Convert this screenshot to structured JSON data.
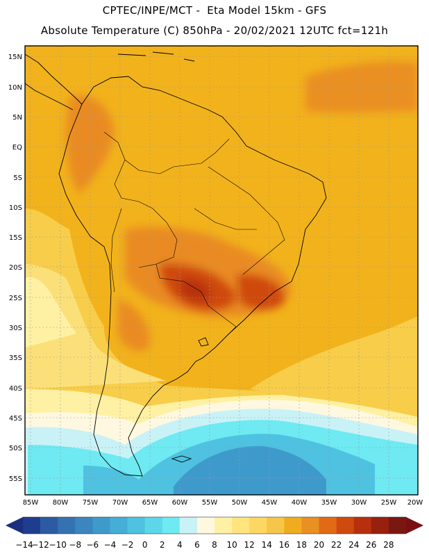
{
  "header": {
    "line1": "CPTEC/INPE/MCT -  Eta Model 15km - GFS",
    "line2": "Absolute Temperature (C) 850hPa - 20/02/2021 12UTC fct=121h"
  },
  "map": {
    "lat_labels": [
      "15N",
      "10N",
      "5N",
      "EQ",
      "5S",
      "10S",
      "15S",
      "20S",
      "25S",
      "30S",
      "35S",
      "40S",
      "45S",
      "50S",
      "55S"
    ],
    "lon_labels": [
      "85W",
      "80W",
      "75W",
      "70W",
      "65W",
      "60W",
      "55W",
      "50W",
      "45W",
      "40W",
      "35W",
      "30W",
      "25W",
      "20W"
    ],
    "colors": {
      "frame": "#000000",
      "grid": "#9a9a9a",
      "border": "#000000"
    }
  },
  "colorbar": {
    "labels": [
      "-14",
      "-12",
      "-10",
      "-8",
      "-6",
      "-4",
      "-2",
      "0",
      "2",
      "4",
      "6",
      "8",
      "10",
      "12",
      "14",
      "16",
      "18",
      "20",
      "22",
      "24",
      "26",
      "28"
    ],
    "under_color": "#1c2f7e",
    "over_color": "#7a0f12",
    "colors": [
      "#1f3d8f",
      "#2c5aa3",
      "#3572b2",
      "#3c86c0",
      "#3f9acc",
      "#45aed6",
      "#4ec2e0",
      "#5ed6ea",
      "#6fe9f2",
      "#c9f2f7",
      "#fff8e0",
      "#fff1a3",
      "#ffe57e",
      "#fcd764",
      "#f6c64b",
      "#f0ac1f",
      "#ea8f22",
      "#e26a15",
      "#cf4a0e",
      "#b7300e",
      "#98200f",
      "#7a1711"
    ]
  }
}
